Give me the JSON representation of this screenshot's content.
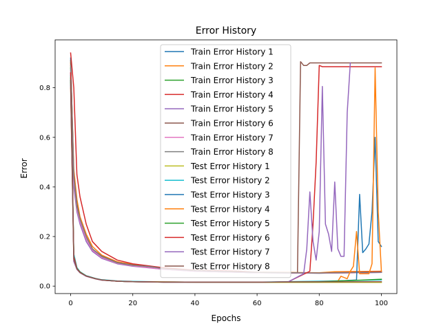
{
  "chart_data": {
    "type": "line",
    "title": "Error History",
    "xlabel": "Epochs",
    "ylabel": "Error",
    "xlim": [
      -5,
      105
    ],
    "ylim": [
      -0.03,
      0.993
    ],
    "xticks": [
      0,
      20,
      40,
      60,
      80,
      100
    ],
    "yticks": [
      0.0,
      0.2,
      0.4,
      0.6,
      0.8
    ],
    "grid": false,
    "legend_position": "top-center",
    "series": [
      {
        "name": "Train Error History 1",
        "color": "#1f77b4",
        "points": [
          [
            0,
            0.92
          ],
          [
            1,
            0.44
          ],
          [
            2,
            0.33
          ],
          [
            3,
            0.27
          ],
          [
            5,
            0.2
          ],
          [
            7,
            0.15
          ],
          [
            10,
            0.12
          ],
          [
            15,
            0.095
          ],
          [
            20,
            0.085
          ],
          [
            30,
            0.07
          ],
          [
            40,
            0.062
          ],
          [
            60,
            0.055
          ],
          [
            80,
            0.053
          ],
          [
            100,
            0.055
          ]
        ]
      },
      {
        "name": "Train Error History 2",
        "color": "#ff7f0e",
        "points": [
          [
            0,
            0.9
          ],
          [
            1,
            0.47
          ],
          [
            2,
            0.35
          ],
          [
            3,
            0.28
          ],
          [
            5,
            0.21
          ],
          [
            7,
            0.16
          ],
          [
            10,
            0.125
          ],
          [
            15,
            0.098
          ],
          [
            20,
            0.087
          ],
          [
            30,
            0.072
          ],
          [
            40,
            0.063
          ],
          [
            60,
            0.056
          ],
          [
            80,
            0.054
          ],
          [
            85,
            0.058
          ],
          [
            100,
            0.06
          ]
        ]
      },
      {
        "name": "Train Error History 3",
        "color": "#2ca02c",
        "points": [
          [
            0,
            0.88
          ],
          [
            1,
            0.43
          ],
          [
            2,
            0.32
          ],
          [
            3,
            0.26
          ],
          [
            5,
            0.19
          ],
          [
            7,
            0.15
          ],
          [
            10,
            0.118
          ],
          [
            15,
            0.093
          ],
          [
            20,
            0.083
          ],
          [
            30,
            0.069
          ],
          [
            40,
            0.061
          ],
          [
            60,
            0.054
          ],
          [
            80,
            0.052
          ],
          [
            100,
            0.056
          ]
        ]
      },
      {
        "name": "Train Error History 4",
        "color": "#d62728",
        "points": [
          [
            0,
            0.94
          ],
          [
            1,
            0.8
          ],
          [
            2,
            0.45
          ],
          [
            3,
            0.36
          ],
          [
            5,
            0.25
          ],
          [
            7,
            0.18
          ],
          [
            10,
            0.14
          ],
          [
            15,
            0.105
          ],
          [
            20,
            0.09
          ],
          [
            30,
            0.074
          ],
          [
            40,
            0.064
          ],
          [
            54,
            0.06
          ],
          [
            60,
            0.056
          ],
          [
            80,
            0.053
          ],
          [
            100,
            0.058
          ]
        ]
      },
      {
        "name": "Train Error History 5",
        "color": "#9467bd",
        "points": [
          [
            0,
            0.86
          ],
          [
            1,
            0.4
          ],
          [
            2,
            0.3
          ],
          [
            3,
            0.25
          ],
          [
            5,
            0.18
          ],
          [
            7,
            0.14
          ],
          [
            10,
            0.112
          ],
          [
            15,
            0.09
          ],
          [
            20,
            0.08
          ],
          [
            30,
            0.068
          ],
          [
            40,
            0.06
          ],
          [
            60,
            0.054
          ],
          [
            80,
            0.052
          ],
          [
            100,
            0.055
          ]
        ]
      },
      {
        "name": "Train Error History 6",
        "color": "#8c564b",
        "points": [
          [
            0,
            0.91
          ],
          [
            1,
            0.45
          ],
          [
            2,
            0.33
          ],
          [
            3,
            0.27
          ],
          [
            5,
            0.2
          ],
          [
            7,
            0.15
          ],
          [
            10,
            0.121
          ],
          [
            15,
            0.095
          ],
          [
            20,
            0.085
          ],
          [
            26,
            0.075
          ],
          [
            30,
            0.07
          ],
          [
            40,
            0.062
          ],
          [
            60,
            0.055
          ],
          [
            73,
            0.053
          ],
          [
            74,
            0.905
          ],
          [
            75,
            0.89
          ],
          [
            76,
            0.89
          ],
          [
            77,
            0.9
          ],
          [
            100,
            0.9
          ]
        ]
      },
      {
        "name": "Train Error History 7",
        "color": "#e377c2",
        "points": [
          [
            0,
            0.87
          ],
          [
            1,
            0.42
          ],
          [
            2,
            0.31
          ],
          [
            3,
            0.26
          ],
          [
            5,
            0.19
          ],
          [
            7,
            0.145
          ],
          [
            10,
            0.115
          ],
          [
            15,
            0.092
          ],
          [
            20,
            0.082
          ],
          [
            30,
            0.068
          ],
          [
            40,
            0.06
          ],
          [
            60,
            0.054
          ],
          [
            80,
            0.052
          ],
          [
            100,
            0.055
          ]
        ]
      },
      {
        "name": "Train Error History 8",
        "color": "#7f7f7f",
        "points": [
          [
            0,
            0.89
          ],
          [
            1,
            0.44
          ],
          [
            2,
            0.32
          ],
          [
            3,
            0.27
          ],
          [
            5,
            0.2
          ],
          [
            7,
            0.15
          ],
          [
            10,
            0.12
          ],
          [
            15,
            0.094
          ],
          [
            20,
            0.084
          ],
          [
            26,
            0.078
          ],
          [
            30,
            0.07
          ],
          [
            40,
            0.062
          ],
          [
            60,
            0.055
          ],
          [
            80,
            0.053
          ],
          [
            100,
            0.056
          ]
        ]
      },
      {
        "name": "Test Error History 1",
        "color": "#bcbd22",
        "points": [
          [
            0,
            0.82
          ],
          [
            1,
            0.12
          ],
          [
            2,
            0.07
          ],
          [
            3,
            0.055
          ],
          [
            5,
            0.04
          ],
          [
            8,
            0.03
          ],
          [
            10,
            0.025
          ],
          [
            15,
            0.02
          ],
          [
            20,
            0.018
          ],
          [
            30,
            0.017
          ],
          [
            40,
            0.016
          ],
          [
            60,
            0.015
          ],
          [
            80,
            0.015
          ],
          [
            100,
            0.015
          ]
        ]
      },
      {
        "name": "Test Error History 2",
        "color": "#17becf",
        "points": [
          [
            0,
            0.85
          ],
          [
            1,
            0.13
          ],
          [
            2,
            0.075
          ],
          [
            3,
            0.058
          ],
          [
            5,
            0.042
          ],
          [
            8,
            0.031
          ],
          [
            10,
            0.026
          ],
          [
            15,
            0.021
          ],
          [
            20,
            0.019
          ],
          [
            30,
            0.017
          ],
          [
            40,
            0.016
          ],
          [
            60,
            0.016
          ],
          [
            80,
            0.02
          ],
          [
            100,
            0.025
          ]
        ]
      },
      {
        "name": "Test Error History 3",
        "color": "#1f77b4",
        "points": [
          [
            0,
            0.83
          ],
          [
            1,
            0.11
          ],
          [
            2,
            0.07
          ],
          [
            3,
            0.056
          ],
          [
            5,
            0.041
          ],
          [
            8,
            0.03
          ],
          [
            10,
            0.025
          ],
          [
            15,
            0.02
          ],
          [
            20,
            0.018
          ],
          [
            30,
            0.016
          ],
          [
            40,
            0.016
          ],
          [
            60,
            0.016
          ],
          [
            80,
            0.018
          ],
          [
            88,
            0.022
          ],
          [
            92,
            0.025
          ],
          [
            93,
            0.37
          ],
          [
            94,
            0.135
          ],
          [
            95,
            0.15
          ],
          [
            96,
            0.17
          ],
          [
            97,
            0.3
          ],
          [
            98,
            0.6
          ],
          [
            99,
            0.18
          ],
          [
            100,
            0.16
          ]
        ]
      },
      {
        "name": "Test Error History 4",
        "color": "#ff7f0e",
        "points": [
          [
            0,
            0.8
          ],
          [
            1,
            0.1
          ],
          [
            2,
            0.068
          ],
          [
            3,
            0.054
          ],
          [
            5,
            0.04
          ],
          [
            8,
            0.029
          ],
          [
            10,
            0.024
          ],
          [
            15,
            0.02
          ],
          [
            20,
            0.018
          ],
          [
            30,
            0.017
          ],
          [
            40,
            0.016
          ],
          [
            60,
            0.016
          ],
          [
            80,
            0.018
          ],
          [
            86,
            0.02
          ],
          [
            87,
            0.04
          ],
          [
            89,
            0.03
          ],
          [
            90,
            0.06
          ],
          [
            91,
            0.08
          ],
          [
            92,
            0.22
          ],
          [
            93,
            0.05
          ],
          [
            96,
            0.05
          ],
          [
            97,
            0.09
          ],
          [
            98,
            0.88
          ],
          [
            99,
            0.3
          ],
          [
            100,
            0.06
          ]
        ]
      },
      {
        "name": "Test Error History 5",
        "color": "#2ca02c",
        "points": [
          [
            0,
            0.84
          ],
          [
            1,
            0.12
          ],
          [
            2,
            0.072
          ],
          [
            3,
            0.057
          ],
          [
            5,
            0.041
          ],
          [
            8,
            0.03
          ],
          [
            10,
            0.025
          ],
          [
            15,
            0.02
          ],
          [
            20,
            0.018
          ],
          [
            30,
            0.016
          ],
          [
            40,
            0.016
          ],
          [
            60,
            0.016
          ],
          [
            80,
            0.017
          ],
          [
            100,
            0.028
          ]
        ]
      },
      {
        "name": "Test Error History 6",
        "color": "#d62728",
        "points": [
          [
            0,
            0.86
          ],
          [
            1,
            0.12
          ],
          [
            2,
            0.071
          ],
          [
            3,
            0.056
          ],
          [
            5,
            0.04
          ],
          [
            8,
            0.03
          ],
          [
            10,
            0.025
          ],
          [
            15,
            0.02
          ],
          [
            20,
            0.018
          ],
          [
            30,
            0.016
          ],
          [
            40,
            0.016
          ],
          [
            60,
            0.016
          ],
          [
            70,
            0.017
          ],
          [
            77,
            0.06
          ],
          [
            78,
            0.25
          ],
          [
            79,
            0.5
          ],
          [
            80,
            0.89
          ],
          [
            81,
            0.885
          ],
          [
            100,
            0.885
          ]
        ]
      },
      {
        "name": "Test Error History 7",
        "color": "#9467bd",
        "points": [
          [
            0,
            0.81
          ],
          [
            1,
            0.1
          ],
          [
            2,
            0.068
          ],
          [
            3,
            0.054
          ],
          [
            5,
            0.04
          ],
          [
            8,
            0.029
          ],
          [
            10,
            0.024
          ],
          [
            15,
            0.02
          ],
          [
            20,
            0.018
          ],
          [
            30,
            0.016
          ],
          [
            40,
            0.016
          ],
          [
            60,
            0.016
          ],
          [
            70,
            0.017
          ],
          [
            75,
            0.05
          ],
          [
            76,
            0.15
          ],
          [
            77,
            0.38
          ],
          [
            78,
            0.18
          ],
          [
            79,
            0.105
          ],
          [
            80,
            0.22
          ],
          [
            81,
            0.805
          ],
          [
            82,
            0.25
          ],
          [
            83,
            0.21
          ],
          [
            84,
            0.14
          ],
          [
            85,
            0.42
          ],
          [
            86,
            0.15
          ],
          [
            87,
            0.12
          ],
          [
            88,
            0.12
          ],
          [
            89,
            0.7
          ],
          [
            90,
            0.9
          ]
        ]
      },
      {
        "name": "Test Error History 8",
        "color": "#8c564b",
        "points": [
          [
            0,
            0.83
          ],
          [
            1,
            0.11
          ],
          [
            2,
            0.07
          ],
          [
            3,
            0.055
          ],
          [
            5,
            0.041
          ],
          [
            8,
            0.03
          ],
          [
            10,
            0.025
          ],
          [
            15,
            0.02
          ],
          [
            20,
            0.018
          ],
          [
            30,
            0.016
          ],
          [
            40,
            0.016
          ],
          [
            60,
            0.016
          ],
          [
            80,
            0.017
          ],
          [
            100,
            0.018
          ]
        ]
      }
    ]
  }
}
